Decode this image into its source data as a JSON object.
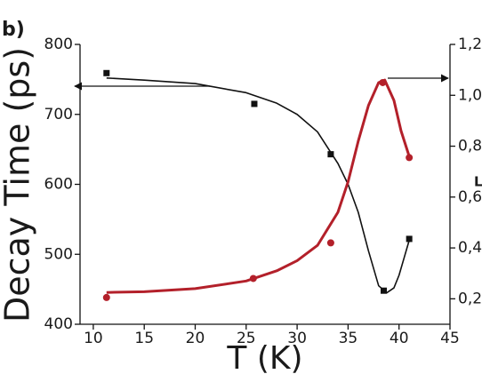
{
  "chart_data": {
    "type": "scatter",
    "panel_label": "b)",
    "xlabel": "T (K)",
    "ylabel": "Decay Time (ps)",
    "y2label": "L",
    "xlim": [
      8.7,
      45
    ],
    "xticks": [
      10,
      15,
      20,
      25,
      30,
      35,
      40,
      45
    ],
    "ylim": [
      400,
      800
    ],
    "yticks": [
      400,
      500,
      600,
      700,
      800
    ],
    "y2lim": [
      0.1,
      1.2
    ],
    "y2ticks": [
      {
        "value": 0.2,
        "label": "0,2"
      },
      {
        "value": 0.4,
        "label": "0,4"
      },
      {
        "value": 0.6,
        "label": "0,6"
      },
      {
        "value": 0.8,
        "label": "0,8"
      },
      {
        "value": 1.0,
        "label": "1,0"
      },
      {
        "value": 1.2,
        "label": "1,2"
      }
    ],
    "series": [
      {
        "color": "#111111",
        "marker": "square",
        "axis": "y",
        "x": [
          11.3,
          25.8,
          33.3,
          38.5,
          41
        ],
        "values": [
          759,
          715,
          643,
          448,
          522
        ]
      },
      {
        "color": "#b3202a",
        "marker": "circle",
        "axis": "y2",
        "x": [
          11.3,
          25.7,
          33.3,
          38.4,
          41
        ],
        "values": [
          0.205,
          0.28,
          0.42,
          1.05,
          0.755
        ]
      },
      {
        "color": "#111111",
        "marker": "none",
        "axis": "y",
        "x": [
          11.3,
          15,
          20,
          25,
          28,
          30,
          32,
          34,
          35,
          36,
          37,
          38,
          38.8,
          39.5,
          40,
          40.5,
          41
        ],
        "values": [
          752,
          749,
          744,
          731,
          716,
          700,
          675,
          630,
          600,
          560,
          505,
          455,
          445,
          452,
          470,
          495,
          520
        ]
      },
      {
        "color": "#b3202a",
        "marker": "none",
        "axis": "y2",
        "x": [
          11.3,
          15,
          20,
          25,
          28,
          30,
          32,
          34,
          35,
          36,
          37,
          38,
          38.6,
          39.5,
          40.2,
          41
        ],
        "values": [
          0.225,
          0.228,
          0.24,
          0.27,
          0.31,
          0.35,
          0.41,
          0.54,
          0.66,
          0.82,
          0.96,
          1.05,
          1.06,
          0.98,
          0.86,
          0.76
        ]
      }
    ]
  }
}
